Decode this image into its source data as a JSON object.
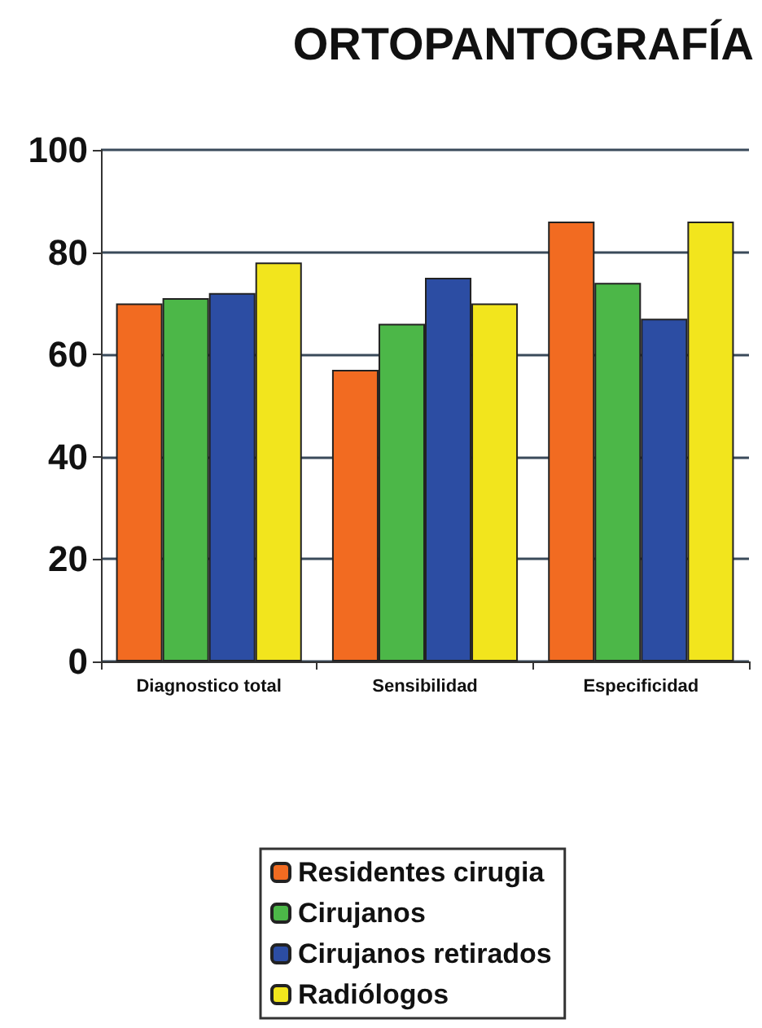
{
  "chart_data": {
    "type": "bar",
    "title": "ORTOPANTOGRAFÍA",
    "categories": [
      "Diagnostico total",
      "Sensibilidad",
      "Especificidad"
    ],
    "series": [
      {
        "name": "Residentes cirugia",
        "color": "#f26b21",
        "values": [
          70,
          57,
          86
        ]
      },
      {
        "name": "Cirujanos",
        "color": "#4cb748",
        "values": [
          71,
          66,
          74
        ]
      },
      {
        "name": "Cirujanos retirados",
        "color": "#2c4da3",
        "values": [
          72,
          75,
          67
        ]
      },
      {
        "name": "Radiólogos",
        "color": "#f2e51d",
        "values": [
          78,
          70,
          86
        ]
      }
    ],
    "ylim": [
      0,
      100
    ],
    "yticks": [
      0,
      20,
      40,
      60,
      80,
      100
    ],
    "grid": "y",
    "legend": "bottom"
  }
}
